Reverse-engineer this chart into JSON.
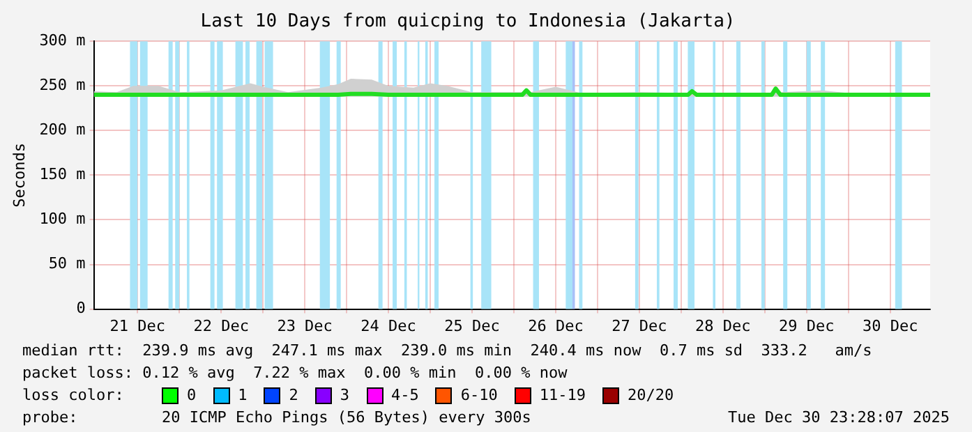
{
  "chart_data": {
    "type": "line",
    "title": "Last 10 Days from quicping to Indonesia (Jakarta)",
    "ylabel": "Seconds",
    "xlim": [
      "2025-12-20T23:28",
      "2025-12-30T23:28"
    ],
    "xticks": [
      {
        "value": "2025-12-21T12:00",
        "label": "21 Dec"
      },
      {
        "value": "2025-12-22T00:00",
        "label": null
      },
      {
        "value": "2025-12-22T12:00",
        "label": "22 Dec"
      },
      {
        "value": "2025-12-23T00:00",
        "label": null
      },
      {
        "value": "2025-12-23T12:00",
        "label": "23 Dec"
      },
      {
        "value": "2025-12-24T00:00",
        "label": null
      },
      {
        "value": "2025-12-24T12:00",
        "label": "24 Dec"
      },
      {
        "value": "2025-12-25T00:00",
        "label": null
      },
      {
        "value": "2025-12-25T12:00",
        "label": "25 Dec"
      },
      {
        "value": "2025-12-26T00:00",
        "label": null
      },
      {
        "value": "2025-12-26T12:00",
        "label": "26 Dec"
      },
      {
        "value": "2025-12-27T00:00",
        "label": null
      },
      {
        "value": "2025-12-27T12:00",
        "label": "27 Dec"
      },
      {
        "value": "2025-12-28T00:00",
        "label": null
      },
      {
        "value": "2025-12-28T12:00",
        "label": "28 Dec"
      },
      {
        "value": "2025-12-29T00:00",
        "label": null
      },
      {
        "value": "2025-12-29T12:00",
        "label": "29 Dec"
      },
      {
        "value": "2025-12-30T00:00",
        "label": null
      },
      {
        "value": "2025-12-30T12:00",
        "label": "30 Dec"
      }
    ],
    "ylim": [
      0,
      300
    ],
    "yticks": [
      0,
      {
        "value": 50,
        "label": "50 m"
      },
      {
        "value": 100,
        "label": "100 m"
      },
      {
        "value": 150,
        "label": "150 m"
      },
      {
        "value": 200,
        "label": "200 m"
      },
      {
        "value": 250,
        "label": "250 m"
      },
      {
        "value": 300,
        "label": "300 m"
      }
    ],
    "grid": true,
    "legend": false,
    "marker": "none",
    "line_style": "solid",
    "series": [
      {
        "color": "#22dd22",
        "x": [
          "2025-12-20T23:28",
          "2025-12-21T06:00",
          "2025-12-21T10:48",
          "2025-12-21T18:00",
          "2025-12-22T00:00",
          "2025-12-22T12:00",
          "2025-12-22T20:24",
          "2025-12-23T00:00",
          "2025-12-23T07:12",
          "2025-12-23T16:48",
          "2025-12-23T21:36",
          "2025-12-24T01:12",
          "2025-12-24T07:12",
          "2025-12-24T12:00",
          "2025-12-24T19:12",
          "2025-12-25T00:00",
          "2025-12-25T04:48",
          "2025-12-25T12:00",
          "2025-12-25T22:48",
          "2025-12-26T02:24",
          "2025-12-26T03:36",
          "2025-12-26T04:48",
          "2025-12-26T12:00",
          "2025-12-26T19:12",
          "2025-12-27T12:00",
          "2025-12-28T02:00",
          "2025-12-28T03:07",
          "2025-12-28T04:30",
          "2025-12-28T12:00",
          "2025-12-29T02:00",
          "2025-12-29T03:07",
          "2025-12-29T04:30",
          "2025-12-29T16:34",
          "2025-12-30T00:00",
          "2025-12-30T12:00",
          "2025-12-30T23:28"
        ],
        "values": [
          240,
          240,
          240,
          240,
          240,
          240,
          240,
          240,
          240,
          240,
          240,
          241,
          241,
          240,
          240,
          240,
          240,
          240,
          240,
          240,
          245,
          240,
          240,
          240,
          240,
          240,
          244,
          240,
          240,
          240,
          247,
          240,
          240,
          240,
          240,
          240
        ],
        "lower": [
          238,
          238,
          238,
          238,
          238,
          238,
          238,
          238,
          238,
          238,
          238,
          238,
          238,
          238,
          238,
          238,
          238,
          238,
          238,
          238,
          238,
          238,
          238,
          238,
          238,
          238,
          238,
          238,
          238,
          238,
          238,
          238,
          238,
          238,
          238,
          238
        ],
        "upper": [
          244,
          243,
          250,
          250,
          243,
          245,
          253,
          249,
          243,
          248,
          252,
          258,
          257,
          250,
          248,
          253,
          250,
          243,
          243,
          243,
          246,
          243,
          249,
          242,
          243,
          242,
          245,
          242,
          242,
          242,
          248,
          243,
          245,
          242,
          242,
          241
        ]
      }
    ],
    "bands": [
      {
        "axis": "x",
        "from": "2025-12-21T09:50",
        "to": "2025-12-21T12:00",
        "color": "#a8e4f8"
      },
      {
        "axis": "x",
        "from": "2025-12-21T12:43",
        "to": "2025-12-21T14:53",
        "color": "#a8e4f8"
      },
      {
        "axis": "x",
        "from": "2025-12-21T20:53",
        "to": "2025-12-21T22:05",
        "color": "#a8e4f8"
      },
      {
        "axis": "x",
        "from": "2025-12-21T22:48",
        "to": "2025-12-22T00:00",
        "color": "#a8e4f8"
      },
      {
        "axis": "x",
        "from": "2025-12-22T02:10",
        "to": "2025-12-22T02:53",
        "color": "#a8e4f8"
      },
      {
        "axis": "x",
        "from": "2025-12-22T08:53",
        "to": "2025-12-22T10:05",
        "color": "#a8e4f8"
      },
      {
        "axis": "x",
        "from": "2025-12-22T10:48",
        "to": "2025-12-22T12:29",
        "color": "#a8e4f8"
      },
      {
        "axis": "x",
        "from": "2025-12-22T16:05",
        "to": "2025-12-22T18:14",
        "color": "#a8e4f8"
      },
      {
        "axis": "x",
        "from": "2025-12-22T18:58",
        "to": "2025-12-22T20:10",
        "color": "#a8e4f8"
      },
      {
        "axis": "x",
        "from": "2025-12-22T22:05",
        "to": "2025-12-22T23:46",
        "color": "#a8e4f8"
      },
      {
        "axis": "x",
        "from": "2025-12-23T00:29",
        "to": "2025-12-23T02:53",
        "color": "#a8e4f8"
      },
      {
        "axis": "x",
        "from": "2025-12-23T16:19",
        "to": "2025-12-23T19:12",
        "color": "#a8e4f8"
      },
      {
        "axis": "x",
        "from": "2025-12-23T21:07",
        "to": "2025-12-23T22:19",
        "color": "#a8e4f8"
      },
      {
        "axis": "x",
        "from": "2025-12-24T09:07",
        "to": "2025-12-24T10:19",
        "color": "#a8e4f8"
      },
      {
        "axis": "x",
        "from": "2025-12-24T13:12",
        "to": "2025-12-24T14:24",
        "color": "#a8e4f8"
      },
      {
        "axis": "x",
        "from": "2025-12-24T16:34",
        "to": "2025-12-24T17:17",
        "color": "#a8e4f8"
      },
      {
        "axis": "x",
        "from": "2025-12-24T20:24",
        "to": "2025-12-24T20:53",
        "color": "#a8e4f8"
      },
      {
        "axis": "x",
        "from": "2025-12-24T22:34",
        "to": "2025-12-24T23:17",
        "color": "#a8e4f8"
      },
      {
        "axis": "x",
        "from": "2025-12-25T01:12",
        "to": "2025-12-25T02:24",
        "color": "#a8e4f8"
      },
      {
        "axis": "x",
        "from": "2025-12-25T11:31",
        "to": "2025-12-25T12:14",
        "color": "#a8e4f8"
      },
      {
        "axis": "x",
        "from": "2025-12-25T14:38",
        "to": "2025-12-25T17:31",
        "color": "#a8e4f8"
      },
      {
        "axis": "x",
        "from": "2025-12-26T05:31",
        "to": "2025-12-26T07:12",
        "color": "#a8e4f8"
      },
      {
        "axis": "x",
        "from": "2025-12-26T14:53",
        "to": "2025-12-26T16:48",
        "color": "#a8e4f8"
      },
      {
        "axis": "x",
        "from": "2025-12-26T16:48",
        "to": "2025-12-26T17:31",
        "color": "#a8c0f8"
      },
      {
        "axis": "x",
        "from": "2025-12-26T18:43",
        "to": "2025-12-26T19:41",
        "color": "#a8e4f8"
      },
      {
        "axis": "x",
        "from": "2025-12-27T10:48",
        "to": "2025-12-27T11:46",
        "color": "#a8e4f8"
      },
      {
        "axis": "x",
        "from": "2025-12-27T17:02",
        "to": "2025-12-27T17:46",
        "color": "#a8e4f8"
      },
      {
        "axis": "x",
        "from": "2025-12-27T21:50",
        "to": "2025-12-27T23:02",
        "color": "#a8e4f8"
      },
      {
        "axis": "x",
        "from": "2025-12-28T01:55",
        "to": "2025-12-28T03:50",
        "color": "#a8e4f8"
      },
      {
        "axis": "x",
        "from": "2025-12-28T09:07",
        "to": "2025-12-28T09:50",
        "color": "#a8e4f8"
      },
      {
        "axis": "x",
        "from": "2025-12-28T15:50",
        "to": "2025-12-28T17:02",
        "color": "#a8e4f8"
      },
      {
        "axis": "x",
        "from": "2025-12-28T23:02",
        "to": "2025-12-29T00:00",
        "color": "#a8e4f8"
      },
      {
        "axis": "x",
        "from": "2025-12-29T05:17",
        "to": "2025-12-29T06:29",
        "color": "#a8e4f8"
      },
      {
        "axis": "x",
        "from": "2025-12-29T12:00",
        "to": "2025-12-29T13:12",
        "color": "#a8e4f8"
      },
      {
        "axis": "x",
        "from": "2025-12-29T16:05",
        "to": "2025-12-29T17:17",
        "color": "#a8e4f8"
      },
      {
        "axis": "x",
        "from": "2025-12-30T13:26",
        "to": "2025-12-30T15:22",
        "color": "#a8e4f8"
      }
    ],
    "annotations": [
      "median rtt:  239.9 ms avg  247.1 ms max  239.0 ms min  240.4 ms now  0.7 ms sd  333.2   am/s",
      "packet loss: 0.12 % avg  7.22 % max  0.00 % min  0.00 % now",
      "loss color:",
      "0",
      "1",
      "2",
      "3",
      "4-5",
      "6-10",
      "11-19",
      "20/20",
      "probe:",
      "20 ICMP Echo Pings (56 Bytes) every 300s",
      "Tue Dec 30 23:28:07 2025"
    ]
  }
}
